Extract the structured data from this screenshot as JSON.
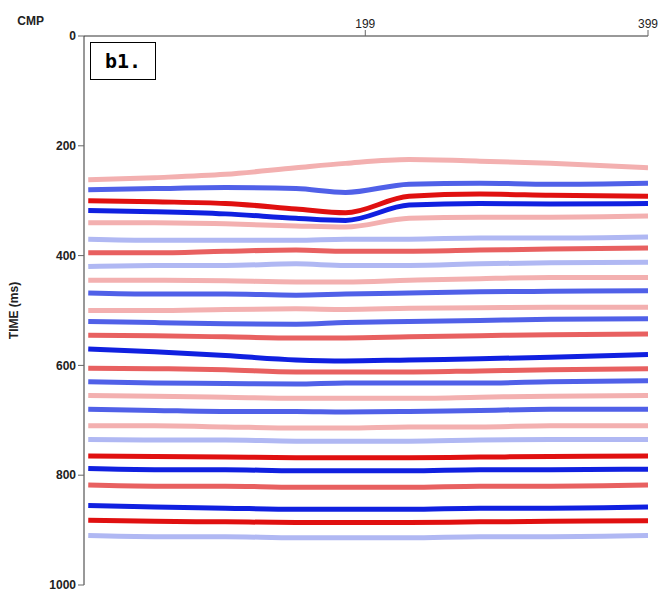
{
  "chart_data": {
    "type": "line",
    "x_label": "CMP",
    "y_label": "TIME (ms)",
    "annotations": [
      "b1."
    ],
    "x": [
      3,
      50,
      100,
      150,
      185,
      230,
      280,
      330,
      399
    ],
    "xlim": [
      0,
      399
    ],
    "xticks": [
      199,
      399
    ],
    "ylim": [
      0,
      1000
    ],
    "yticks": [
      0,
      200,
      400,
      600,
      800,
      1000
    ],
    "grid": false,
    "series": [
      {
        "color": "#f3b0b0",
        "values": [
          262,
          258,
          252,
          240,
          232,
          225,
          228,
          232,
          240
        ]
      },
      {
        "color": "#5060e8",
        "values": [
          280,
          278,
          276,
          278,
          285,
          270,
          268,
          270,
          268
        ]
      },
      {
        "color": "#e01010",
        "values": [
          300,
          302,
          305,
          315,
          322,
          292,
          288,
          290,
          292
        ]
      },
      {
        "color": "#1020e0",
        "values": [
          318,
          320,
          324,
          332,
          336,
          308,
          305,
          306,
          305
        ]
      },
      {
        "color": "#f3b0b0",
        "values": [
          340,
          340,
          342,
          346,
          348,
          332,
          330,
          330,
          328
        ]
      },
      {
        "color": "#b0b8f3",
        "values": [
          370,
          372,
          372,
          372,
          370,
          370,
          368,
          368,
          366
        ]
      },
      {
        "color": "#e86060",
        "values": [
          395,
          395,
          392,
          390,
          392,
          392,
          390,
          388,
          386
        ]
      },
      {
        "color": "#b0b8f3",
        "values": [
          420,
          418,
          418,
          415,
          418,
          418,
          415,
          413,
          412
        ]
      },
      {
        "color": "#f3b0b0",
        "values": [
          445,
          445,
          446,
          448,
          448,
          445,
          442,
          440,
          440
        ]
      },
      {
        "color": "#5060e8",
        "values": [
          468,
          470,
          470,
          472,
          470,
          468,
          466,
          465,
          464
        ]
      },
      {
        "color": "#f3b0b0",
        "values": [
          500,
          500,
          498,
          497,
          498,
          496,
          495,
          494,
          494
        ]
      },
      {
        "color": "#5060e8",
        "values": [
          520,
          522,
          524,
          525,
          522,
          520,
          518,
          516,
          515
        ]
      },
      {
        "color": "#e86060",
        "values": [
          545,
          546,
          548,
          550,
          550,
          548,
          546,
          544,
          543
        ]
      },
      {
        "color": "#1020e0",
        "values": [
          570,
          575,
          582,
          590,
          592,
          590,
          588,
          585,
          580
        ]
      },
      {
        "color": "#e86060",
        "values": [
          605,
          606,
          608,
          612,
          612,
          612,
          610,
          608,
          606
        ]
      },
      {
        "color": "#5060e8",
        "values": [
          630,
          632,
          633,
          634,
          632,
          632,
          632,
          630,
          628
        ]
      },
      {
        "color": "#f3b0b0",
        "values": [
          655,
          656,
          658,
          660,
          660,
          660,
          658,
          656,
          655
        ]
      },
      {
        "color": "#5060e8",
        "values": [
          680,
          682,
          684,
          684,
          685,
          684,
          682,
          680,
          680
        ]
      },
      {
        "color": "#f3b0b0",
        "values": [
          710,
          710,
          712,
          714,
          714,
          712,
          712,
          710,
          710
        ]
      },
      {
        "color": "#b0b8f3",
        "values": [
          735,
          736,
          736,
          738,
          738,
          738,
          736,
          735,
          735
        ]
      },
      {
        "color": "#e01010",
        "values": [
          765,
          766,
          767,
          768,
          768,
          768,
          767,
          766,
          765
        ]
      },
      {
        "color": "#1020e0",
        "values": [
          788,
          790,
          790,
          792,
          792,
          792,
          790,
          790,
          789
        ]
      },
      {
        "color": "#e86060",
        "values": [
          818,
          820,
          820,
          822,
          822,
          822,
          820,
          820,
          818
        ]
      },
      {
        "color": "#1020e0",
        "values": [
          855,
          858,
          860,
          862,
          862,
          862,
          860,
          860,
          858
        ]
      },
      {
        "color": "#e01010",
        "values": [
          882,
          884,
          885,
          886,
          886,
          886,
          885,
          884,
          883
        ]
      },
      {
        "color": "#b0b8f3",
        "values": [
          910,
          912,
          912,
          914,
          914,
          914,
          912,
          912,
          910
        ]
      }
    ]
  }
}
